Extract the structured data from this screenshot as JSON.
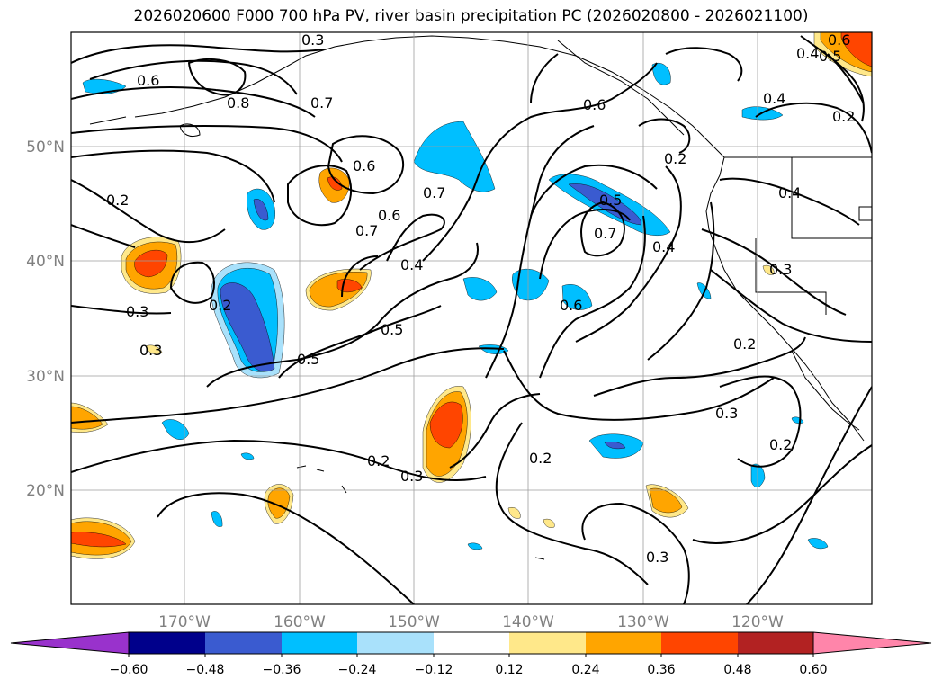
{
  "title": "2026020600 F000 700 hPa PV, river basin precipitation PC (2026020800 - 2026021100)",
  "lat_labels": [
    "50°N",
    "40°N",
    "30°N",
    "20°N"
  ],
  "lon_labels": [
    "170°W",
    "160°W",
    "150°W",
    "140°W",
    "130°W",
    "120°W"
  ],
  "contour_labels": [
    "0.6",
    "0.8",
    "0.7",
    "0.6",
    "0.7",
    "0.6",
    "0.6",
    "0.7",
    "0.4",
    "0.2",
    "0.3",
    "0.3",
    "0.2",
    "0.5",
    "0.5",
    "0.2",
    "0.3",
    "0.2",
    "0.5",
    "0.7",
    "0.6",
    "0.4",
    "0.4",
    "0.3",
    "0.2",
    "0.3",
    "0.2",
    "0.3",
    "0.4",
    "0.2",
    "0.6",
    "0.4",
    "0.5",
    "0.2",
    "0.3"
  ],
  "colorbar": {
    "tick_labels": [
      "−0.60",
      "−0.48",
      "−0.36",
      "−0.24",
      "−0.12",
      "0.12",
      "0.24",
      "0.36",
      "0.48",
      "0.60"
    ],
    "colors": [
      "#9932cc",
      "#00008b",
      "#3a5bd0",
      "#00bfff",
      "#a9e1fb",
      "#ffffff",
      "#ffe88a",
      "#ffa500",
      "#ff4500",
      "#b22222",
      "#ff85aa"
    ]
  },
  "fill_colors": {
    "neg_light": "#a9e1fb",
    "neg_mid": "#00bfff",
    "neg_dark": "#3a5bd0",
    "pos_light": "#ffe88a",
    "pos_mid": "#ffa500",
    "pos_dark": "#ff4500"
  }
}
